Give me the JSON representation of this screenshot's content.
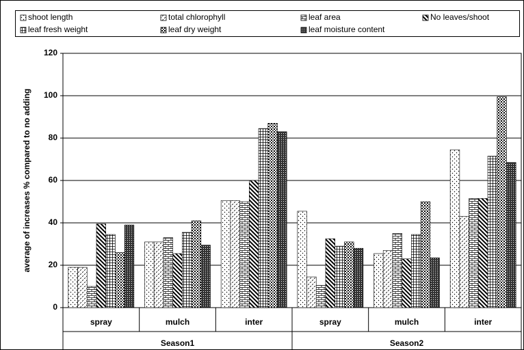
{
  "chart_data": {
    "type": "bar",
    "ylabel": "average of increases % compared to no adding",
    "groups": [
      "Season1",
      "Season2"
    ],
    "categories": [
      "spray",
      "mulch",
      "inter",
      "spray",
      "mulch",
      "inter"
    ],
    "ylim": [
      0,
      120
    ],
    "yticks": [
      0,
      20,
      40,
      60,
      80,
      100,
      120
    ],
    "grid": true,
    "legend": "top",
    "series": [
      {
        "name": "shoot length",
        "pattern": "dots",
        "values": [
          19,
          31,
          50.5,
          45.5,
          25.5,
          74.5
        ]
      },
      {
        "name": "total chlorophyll",
        "pattern": "dashes",
        "values": [
          19,
          31,
          50.5,
          14.5,
          27,
          43
        ]
      },
      {
        "name": "leaf area",
        "pattern": "brick",
        "values": [
          10,
          33,
          50,
          10.5,
          35,
          51.5
        ]
      },
      {
        "name": "No leaves/shoot",
        "pattern": "stripes",
        "values": [
          39.5,
          25.5,
          60,
          32.5,
          23,
          51.5
        ]
      },
      {
        "name": "leaf fresh weight",
        "pattern": "grid",
        "values": [
          34.5,
          35.5,
          84.5,
          29,
          34.5,
          71.5
        ]
      },
      {
        "name": "leaf dry weight",
        "pattern": "check",
        "values": [
          26,
          41,
          87,
          31,
          50,
          99.5
        ]
      },
      {
        "name": "leaf moisture content",
        "pattern": "dense",
        "values": [
          39,
          29.5,
          83,
          28,
          23.5,
          68.5
        ]
      }
    ]
  }
}
